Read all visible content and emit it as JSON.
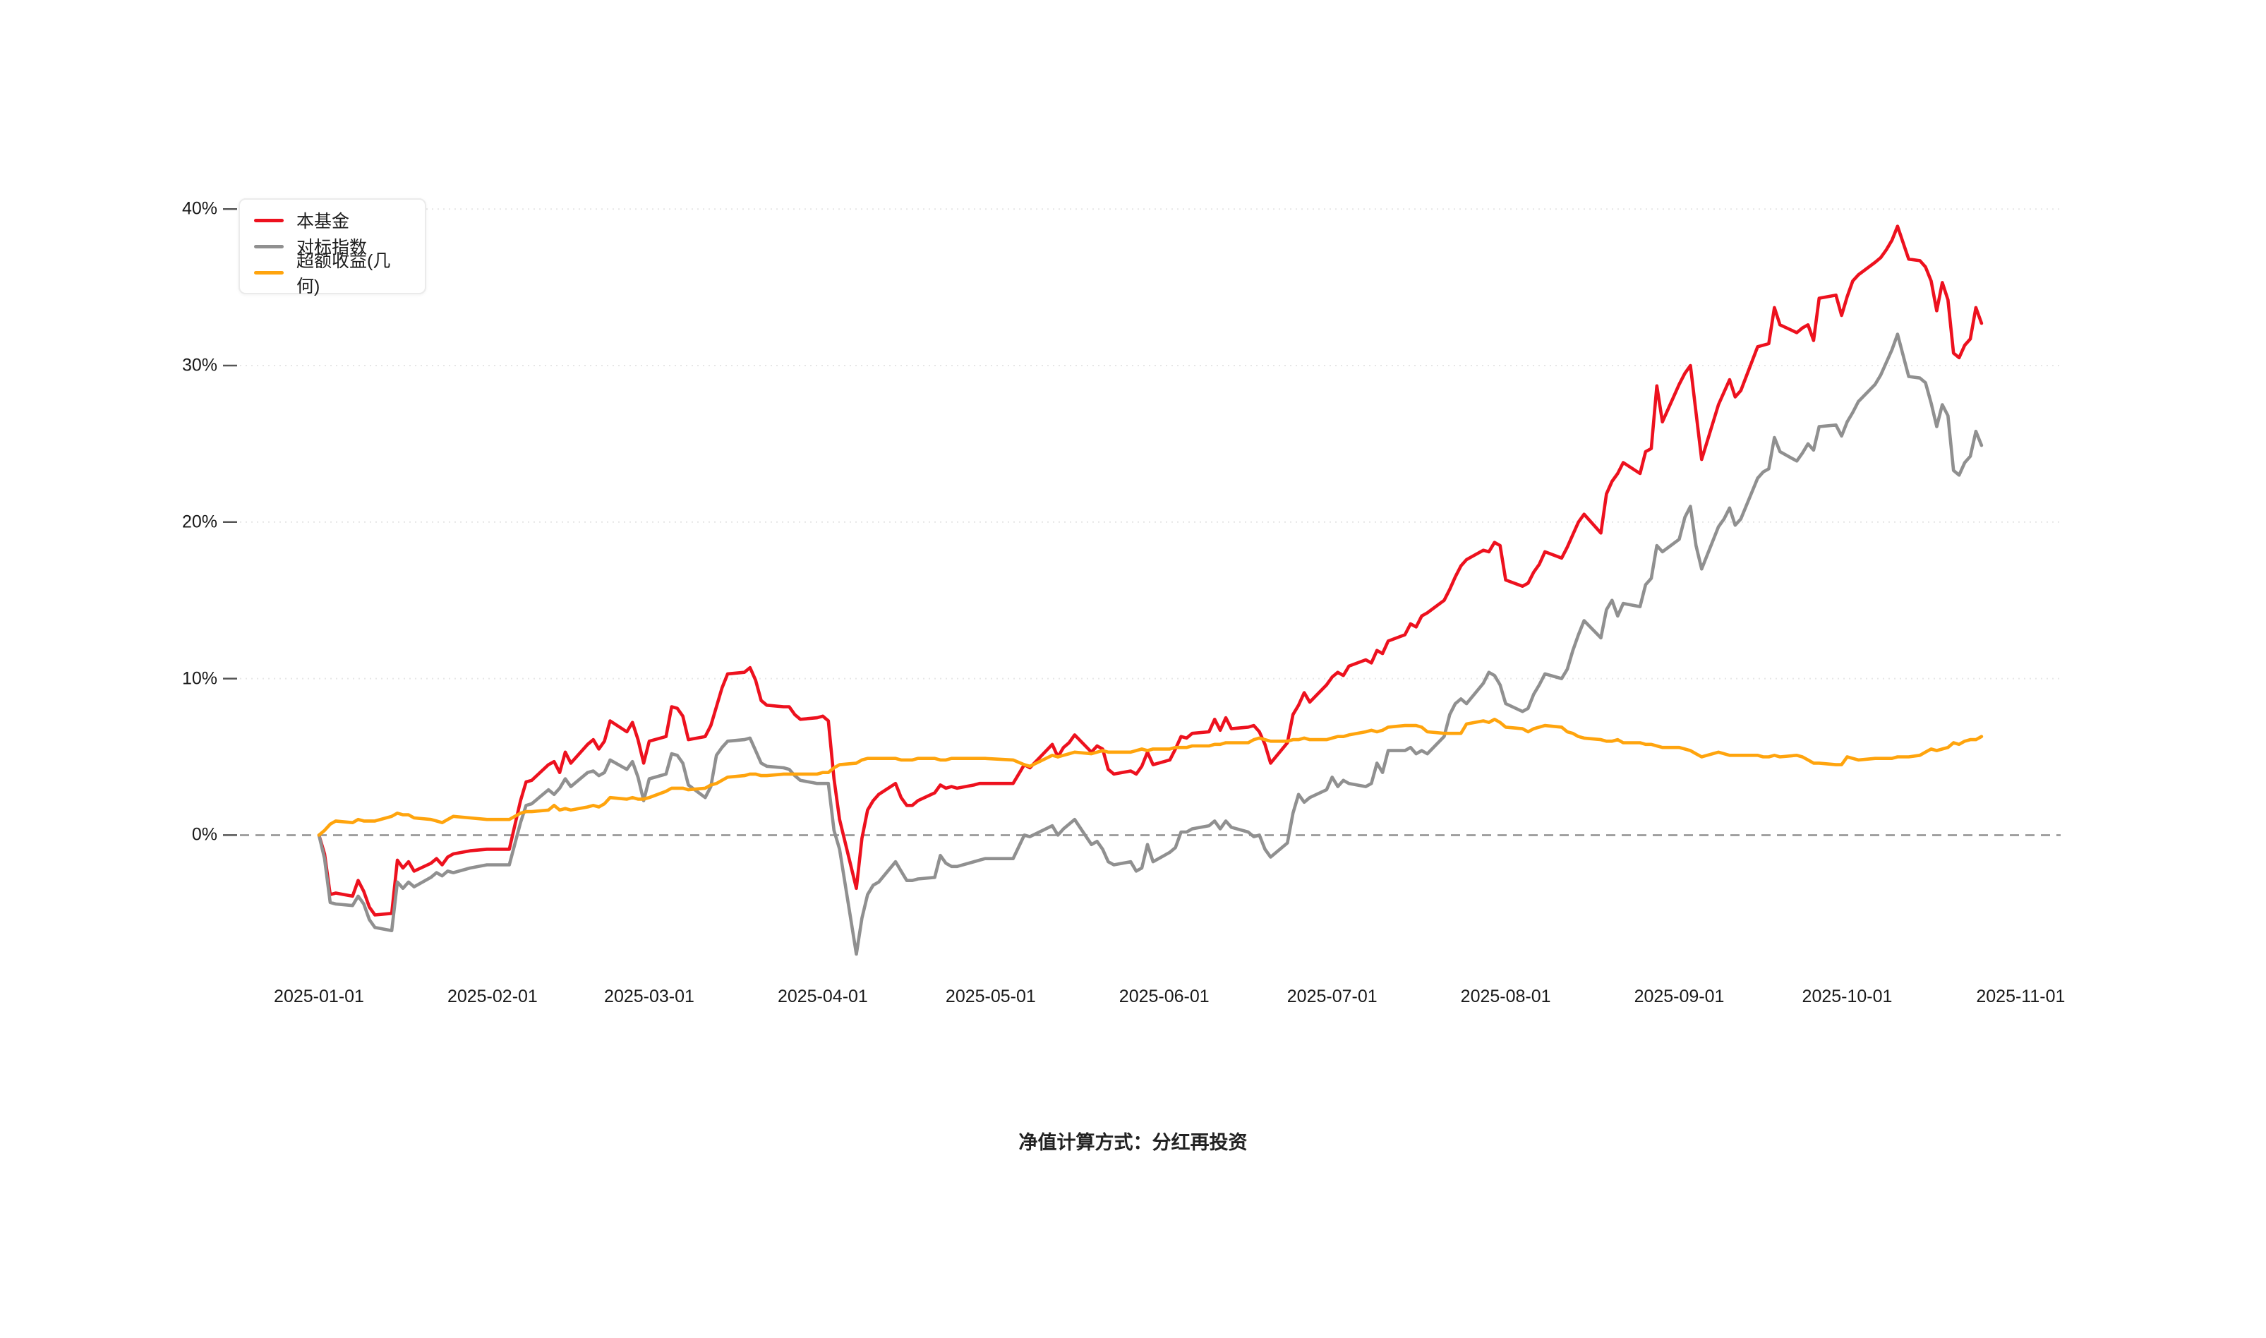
{
  "page": {
    "background": "#ffffff",
    "footer_note": "净值计算方式：分红再投资"
  },
  "chart_data": {
    "type": "line",
    "title": "",
    "xlabel": "",
    "ylabel": "",
    "unit": "percent",
    "grid": "horizontal-dotted",
    "legend_position": "top-left",
    "x_axis": {
      "tick_labels": [
        "2025-01-01",
        "2025-02-01",
        "2025-03-01",
        "2025-04-01",
        "2025-05-01",
        "2025-06-01",
        "2025-07-01",
        "2025-08-01",
        "2025-09-01",
        "2025-10-01",
        "2025-11-01"
      ],
      "tick_day_offsets": [
        0,
        31,
        59,
        90,
        120,
        151,
        181,
        212,
        243,
        273,
        304
      ]
    },
    "y_axis": {
      "tick_labels": [
        "0%",
        "10%",
        "20%",
        "30%",
        "40%"
      ],
      "tick_values": [
        0,
        10,
        20,
        30,
        40
      ],
      "ylim": [
        -9,
        41
      ],
      "zero_line_style": "dashed"
    },
    "legend": [
      {
        "name": "本基金",
        "color": "#ed111e"
      },
      {
        "name": "对标指数",
        "color": "#909090"
      },
      {
        "name": "超额收益(几何)",
        "color": "#ffa40d"
      }
    ],
    "days": [
      0,
      1,
      2,
      3,
      6,
      7,
      8,
      9,
      10,
      13,
      14,
      15,
      16,
      17,
      20,
      21,
      22,
      23,
      24,
      27,
      30,
      34,
      36,
      37,
      38,
      41,
      42,
      43,
      44,
      45,
      48,
      49,
      50,
      51,
      52,
      55,
      56,
      57,
      58,
      59,
      62,
      63,
      64,
      65,
      66,
      69,
      70,
      71,
      72,
      73,
      76,
      77,
      78,
      79,
      80,
      83,
      84,
      85,
      86,
      89,
      90,
      91,
      92,
      93,
      96,
      97,
      98,
      99,
      100,
      103,
      104,
      105,
      106,
      107,
      110,
      111,
      112,
      113,
      114,
      117,
      118,
      119,
      124,
      126,
      127,
      131,
      132,
      133,
      134,
      135,
      138,
      139,
      140,
      141,
      142,
      145,
      146,
      147,
      148,
      149,
      152,
      153,
      154,
      155,
      156,
      159,
      160,
      161,
      162,
      163,
      166,
      167,
      168,
      169,
      170,
      173,
      174,
      175,
      176,
      177,
      180,
      181,
      182,
      183,
      184,
      187,
      188,
      189,
      190,
      191,
      194,
      195,
      196,
      197,
      198,
      201,
      202,
      203,
      204,
      205,
      208,
      209,
      210,
      211,
      212,
      215,
      216,
      217,
      218,
      219,
      222,
      223,
      224,
      225,
      226,
      229,
      230,
      231,
      232,
      233,
      236,
      237,
      238,
      239,
      240,
      243,
      244,
      245,
      246,
      247,
      250,
      251,
      252,
      253,
      254,
      257,
      258,
      259,
      260,
      261,
      264,
      265,
      266,
      267,
      268,
      271,
      272,
      273,
      274,
      275,
      278,
      279,
      280,
      281,
      282,
      284,
      286,
      287,
      288,
      289,
      290,
      291,
      292,
      293,
      294,
      295,
      296,
      297
    ],
    "series": [
      {
        "name": "本基金",
        "color": "#ed111e",
        "values": [
          0,
          -1.2,
          -3.8,
          -3.7,
          -3.9,
          -2.9,
          -3.6,
          -4.6,
          -5.1,
          -5.0,
          -1.6,
          -2.1,
          -1.7,
          -2.3,
          -1.8,
          -1.5,
          -1.9,
          -1.4,
          -1.2,
          -1.0,
          -0.9,
          -0.9,
          2.2,
          3.4,
          3.5,
          4.5,
          4.7,
          4.0,
          5.3,
          4.6,
          5.8,
          6.1,
          5.5,
          6.0,
          7.3,
          6.6,
          7.2,
          6.1,
          4.6,
          6.0,
          6.3,
          8.2,
          8.1,
          7.6,
          6.1,
          6.3,
          7.0,
          8.2,
          9.4,
          10.3,
          10.4,
          10.7,
          9.9,
          8.6,
          8.3,
          8.2,
          8.2,
          7.7,
          7.4,
          7.5,
          7.6,
          7.3,
          3.6,
          1.0,
          -3.4,
          -0.2,
          1.6,
          2.2,
          2.6,
          3.3,
          2.4,
          1.9,
          1.9,
          2.2,
          2.7,
          3.2,
          3.0,
          3.1,
          3.0,
          3.2,
          3.3,
          3.3,
          3.3,
          4.5,
          4.3,
          5.8,
          5.0,
          5.6,
          5.9,
          6.4,
          5.3,
          5.7,
          5.5,
          4.2,
          3.9,
          4.1,
          3.9,
          4.4,
          5.3,
          4.5,
          4.8,
          5.5,
          6.3,
          6.2,
          6.5,
          6.6,
          7.4,
          6.7,
          7.5,
          6.8,
          6.9,
          7.0,
          6.6,
          5.8,
          4.6,
          5.9,
          7.7,
          8.3,
          9.1,
          8.5,
          9.6,
          10.1,
          10.4,
          10.2,
          10.8,
          11.2,
          11.0,
          11.8,
          11.6,
          12.4,
          12.8,
          13.5,
          13.3,
          14.0,
          14.2,
          15.0,
          15.7,
          16.5,
          17.2,
          17.6,
          18.2,
          18.1,
          18.7,
          18.5,
          16.3,
          15.9,
          16.1,
          16.8,
          17.3,
          18.1,
          17.7,
          18.4,
          19.2,
          20.0,
          20.5,
          19.3,
          21.8,
          22.6,
          23.1,
          23.8,
          23.1,
          24.5,
          24.7,
          28.7,
          26.4,
          28.8,
          29.5,
          30.0,
          27.0,
          24.0,
          27.5,
          28.3,
          29.1,
          28.0,
          28.4,
          31.2,
          31.3,
          31.4,
          33.7,
          32.6,
          32.1,
          32.4,
          32.6,
          31.6,
          34.3,
          34.5,
          33.2,
          34.4,
          35.4,
          35.8,
          36.6,
          36.9,
          37.4,
          38.0,
          38.9,
          36.8,
          36.7,
          36.3,
          35.4,
          33.5,
          35.3,
          34.2,
          30.8,
          30.5,
          31.3,
          31.7,
          33.7,
          32.7
        ]
      },
      {
        "name": "对标指数",
        "color": "#909090",
        "values": [
          0,
          -1.5,
          -4.3,
          -4.4,
          -4.5,
          -3.9,
          -4.4,
          -5.4,
          -5.9,
          -6.1,
          -3.0,
          -3.4,
          -3.0,
          -3.3,
          -2.7,
          -2.4,
          -2.6,
          -2.3,
          -2.4,
          -2.1,
          -1.9,
          -1.9,
          0.8,
          1.9,
          2.0,
          2.9,
          2.6,
          3.0,
          3.6,
          3.1,
          4.0,
          4.1,
          3.8,
          4.0,
          4.8,
          4.2,
          4.7,
          3.7,
          2.2,
          3.6,
          3.9,
          5.2,
          5.1,
          4.6,
          3.2,
          2.4,
          3.1,
          5.1,
          5.6,
          6.0,
          6.1,
          6.2,
          5.4,
          4.6,
          4.4,
          4.3,
          4.2,
          3.8,
          3.5,
          3.3,
          3.3,
          3.3,
          0.3,
          -0.9,
          -7.6,
          -5.3,
          -3.8,
          -3.2,
          -3.0,
          -1.7,
          -2.3,
          -2.9,
          -2.9,
          -2.8,
          -2.7,
          -1.3,
          -1.8,
          -2.0,
          -2.0,
          -1.7,
          -1.6,
          -1.5,
          -1.5,
          0.0,
          -0.1,
          0.6,
          0.0,
          0.4,
          0.7,
          1.0,
          -0.6,
          -0.4,
          -0.9,
          -1.7,
          -1.9,
          -1.7,
          -2.3,
          -2.1,
          -0.6,
          -1.7,
          -1.1,
          -0.8,
          0.2,
          0.2,
          0.4,
          0.6,
          0.9,
          0.4,
          0.9,
          0.5,
          0.2,
          -0.1,
          0.0,
          -0.9,
          -1.4,
          -0.5,
          1.4,
          2.6,
          2.1,
          2.4,
          2.9,
          3.7,
          3.1,
          3.5,
          3.3,
          3.1,
          3.3,
          4.6,
          4.0,
          5.4,
          5.4,
          5.6,
          5.2,
          5.4,
          5.2,
          6.3,
          7.7,
          8.4,
          8.7,
          8.4,
          9.7,
          10.4,
          10.2,
          9.6,
          8.4,
          7.9,
          8.1,
          9.0,
          9.6,
          10.3,
          10.0,
          10.6,
          11.8,
          12.8,
          13.7,
          12.6,
          14.4,
          15.0,
          14.0,
          14.8,
          14.6,
          16.0,
          16.4,
          18.5,
          18.1,
          18.9,
          20.3,
          21.0,
          18.5,
          17.0,
          19.7,
          20.2,
          20.9,
          19.8,
          20.2,
          22.8,
          23.2,
          23.4,
          25.4,
          24.5,
          23.9,
          24.4,
          25.0,
          24.6,
          26.1,
          26.2,
          25.5,
          26.4,
          27.0,
          27.7,
          28.8,
          29.4,
          30.2,
          31.0,
          32.0,
          29.3,
          29.2,
          28.9,
          27.6,
          26.1,
          27.5,
          26.8,
          23.3,
          23.0,
          23.8,
          24.2,
          25.8,
          24.9
        ]
      },
      {
        "name": "超额收益(几何)",
        "color": "#ffa40d",
        "values": [
          0,
          0.3,
          0.7,
          0.9,
          0.8,
          1.0,
          0.9,
          0.9,
          0.9,
          1.2,
          1.4,
          1.3,
          1.3,
          1.1,
          1.0,
          0.9,
          0.8,
          1.0,
          1.2,
          1.1,
          1.0,
          1.0,
          1.4,
          1.5,
          1.5,
          1.6,
          1.9,
          1.6,
          1.7,
          1.6,
          1.8,
          1.9,
          1.8,
          2.0,
          2.4,
          2.3,
          2.4,
          2.3,
          2.3,
          2.4,
          2.8,
          3.0,
          3.0,
          3.0,
          2.9,
          3.0,
          3.2,
          3.3,
          3.5,
          3.7,
          3.8,
          3.9,
          3.9,
          3.8,
          3.8,
          3.9,
          3.9,
          3.9,
          3.9,
          3.9,
          4.0,
          4.0,
          4.3,
          4.5,
          4.6,
          4.8,
          4.9,
          4.9,
          4.9,
          4.9,
          4.8,
          4.8,
          4.8,
          4.9,
          4.9,
          4.8,
          4.8,
          4.9,
          4.9,
          4.9,
          4.9,
          4.9,
          4.8,
          4.5,
          4.4,
          5.1,
          5.0,
          5.1,
          5.2,
          5.3,
          5.2,
          5.3,
          5.4,
          5.3,
          5.3,
          5.3,
          5.4,
          5.5,
          5.4,
          5.5,
          5.5,
          5.6,
          5.6,
          5.6,
          5.7,
          5.7,
          5.8,
          5.8,
          5.9,
          5.9,
          5.9,
          6.1,
          6.2,
          6.1,
          6.0,
          6.0,
          6.1,
          6.1,
          6.2,
          6.1,
          6.1,
          6.2,
          6.3,
          6.3,
          6.4,
          6.6,
          6.7,
          6.6,
          6.7,
          6.9,
          7.0,
          7.0,
          7.0,
          6.9,
          6.6,
          6.5,
          6.5,
          6.5,
          6.5,
          7.1,
          7.3,
          7.2,
          7.4,
          7.2,
          6.9,
          6.8,
          6.6,
          6.8,
          6.9,
          7.0,
          6.9,
          6.6,
          6.5,
          6.3,
          6.2,
          6.1,
          6.0,
          6.0,
          6.1,
          5.9,
          5.9,
          5.8,
          5.8,
          5.7,
          5.6,
          5.6,
          5.5,
          5.4,
          5.2,
          5.0,
          5.3,
          5.2,
          5.1,
          5.1,
          5.1,
          5.1,
          5.0,
          5.0,
          5.1,
          5.0,
          5.1,
          5.0,
          4.8,
          4.6,
          4.6,
          4.5,
          4.5,
          5.0,
          4.9,
          4.8,
          4.9,
          4.9,
          4.9,
          4.9,
          5.0,
          5.0,
          5.1,
          5.3,
          5.5,
          5.4,
          5.5,
          5.6,
          5.9,
          5.8,
          6.0,
          6.1,
          6.1,
          6.3
        ]
      }
    ]
  }
}
